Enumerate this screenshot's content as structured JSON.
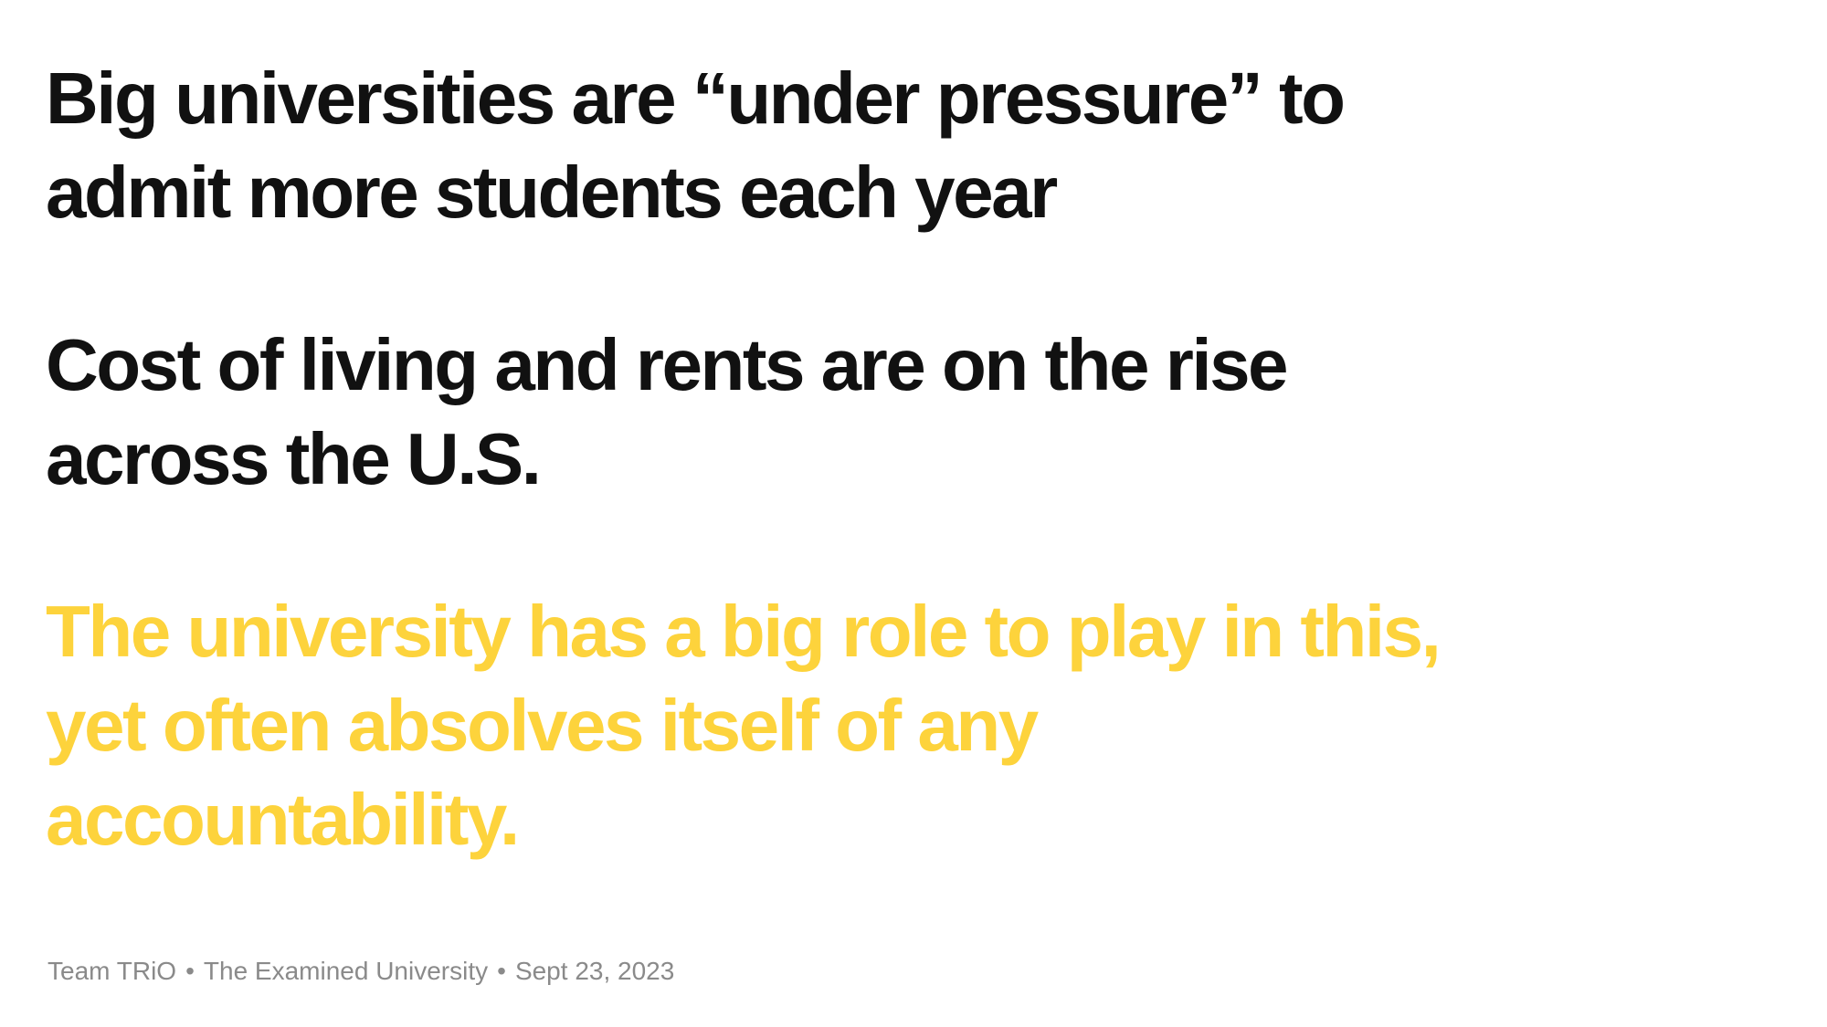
{
  "slide": {
    "headlines": [
      {
        "text": "Big universities are “under pressure” to\nadmit more students each year"
      },
      {
        "text": "Cost of living and rents are on the rise\nacross the U.S."
      },
      {
        "text": "The university has a big role to play in this,\nyet often absolves itself of any\naccountability."
      }
    ],
    "footer": {
      "team": "Team TRiO",
      "separator": "•",
      "course": "The Examined University",
      "date": "Sept 23, 2023"
    }
  },
  "colors": {
    "heading": "#111111",
    "accent": "#FDD33C",
    "footer": "#8a8a8a",
    "background": "#ffffff"
  }
}
